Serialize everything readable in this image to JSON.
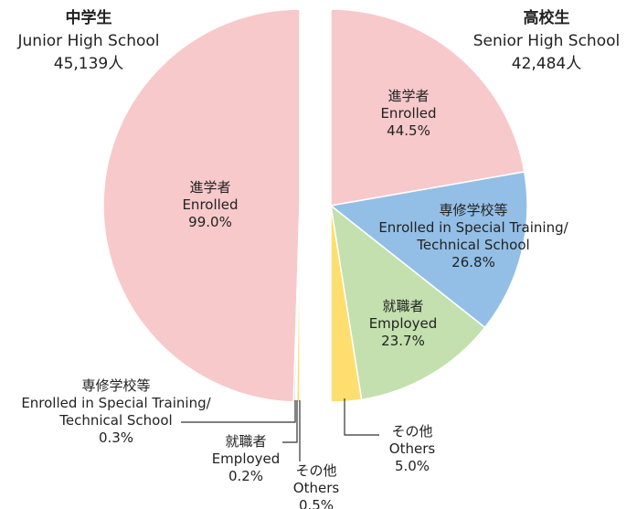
{
  "chart_data": [
    {
      "type": "pie",
      "title": "中学生",
      "subtitle": "Junior High School",
      "total": "45,139人",
      "categories_ja": [
        "進学者",
        "専修学校等",
        "就職者",
        "その他"
      ],
      "categories": [
        "Enrolled",
        "Enrolled in Special Training/\nTechnical School",
        "Employed",
        "Others"
      ],
      "values": [
        99.0,
        0.3,
        0.2,
        0.5
      ],
      "value_labels": [
        "99.0%",
        "0.3%",
        "0.2%",
        "0.5%"
      ],
      "colors": [
        "#f7c9cb",
        "#93bfe6",
        "#c3e0ae",
        "#fede6f"
      ]
    },
    {
      "type": "pie",
      "title": "高校生",
      "subtitle": "Senior High School",
      "total": "42,484人",
      "categories_ja": [
        "進学者",
        "専修学校等",
        "就職者",
        "その他"
      ],
      "categories": [
        "Enrolled",
        "Enrolled in Special Training/\nTechnical School",
        "Employed",
        "Others"
      ],
      "values": [
        44.5,
        26.8,
        23.7,
        5.0
      ],
      "value_labels": [
        "44.5%",
        "26.8%",
        "23.7%",
        "5.0%"
      ],
      "colors": [
        "#f7c9cb",
        "#93bfe6",
        "#c3e0ae",
        "#fede6f"
      ]
    }
  ]
}
